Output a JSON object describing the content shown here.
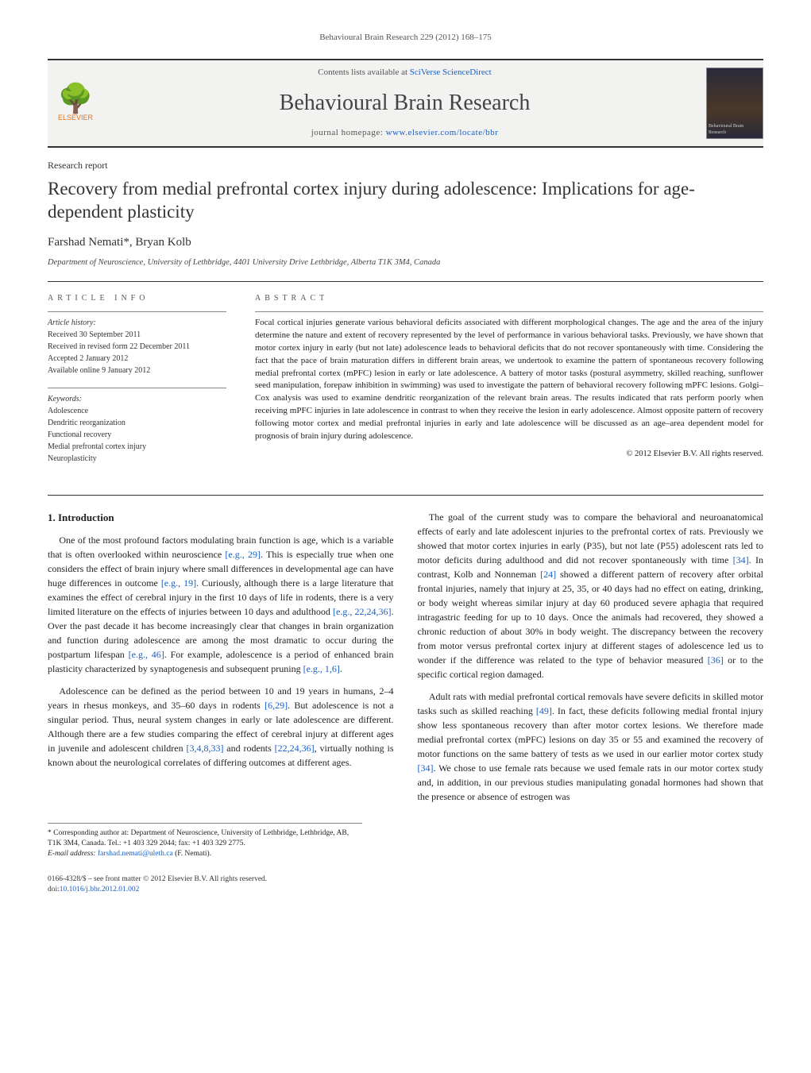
{
  "running_header": "Behavioural Brain Research 229 (2012) 168–175",
  "masthead": {
    "publisher": "ELSEVIER",
    "contents_prefix": "Contents lists available at ",
    "contents_link": "SciVerse ScienceDirect",
    "journal_title": "Behavioural Brain Research",
    "homepage_prefix": "journal homepage: ",
    "homepage_link": "www.elsevier.com/locate/bbr",
    "cover_caption": "Behavioural Brain Research"
  },
  "article": {
    "section_label": "Research report",
    "title": "Recovery from medial prefrontal cortex injury during adolescence: Implications for age-dependent plasticity",
    "authors": "Farshad Nemati*, Bryan Kolb",
    "affiliation": "Department of Neuroscience, University of Lethbridge, 4401 University Drive Lethbridge, Alberta T1K 3M4, Canada"
  },
  "info": {
    "heading": "ARTICLE INFO",
    "history_label": "Article history:",
    "history": {
      "received": "Received 30 September 2011",
      "revised": "Received in revised form 22 December 2011",
      "accepted": "Accepted 2 January 2012",
      "online": "Available online 9 January 2012"
    },
    "keywords_label": "Keywords:",
    "keywords": [
      "Adolescence",
      "Dendritic reorganization",
      "Functional recovery",
      "Medial prefrontal cortex injury",
      "Neuroplasticity"
    ]
  },
  "abstract": {
    "heading": "ABSTRACT",
    "text": "Focal cortical injuries generate various behavioral deficits associated with different morphological changes. The age and the area of the injury determine the nature and extent of recovery represented by the level of performance in various behavioral tasks. Previously, we have shown that motor cortex injury in early (but not late) adolescence leads to behavioral deficits that do not recover spontaneously with time. Considering the fact that the pace of brain maturation differs in different brain areas, we undertook to examine the pattern of spontaneous recovery following medial prefrontal cortex (mPFC) lesion in early or late adolescence. A battery of motor tasks (postural asymmetry, skilled reaching, sunflower seed manipulation, forepaw inhibition in swimming) was used to investigate the pattern of behavioral recovery following mPFC lesions. Golgi–Cox analysis was used to examine dendritic reorganization of the relevant brain areas. The results indicated that rats perform poorly when receiving mPFC injuries in late adolescence in contrast to when they receive the lesion in early adolescence. Almost opposite pattern of recovery following motor cortex and medial prefrontal injuries in early and late adolescence will be discussed as an age–area dependent model for prognosis of brain injury during adolescence.",
    "copyright": "© 2012 Elsevier B.V. All rights reserved."
  },
  "body": {
    "section_heading": "1. Introduction",
    "p1_a": "One of the most profound factors modulating brain function is age, which is a variable that is often overlooked within neuroscience ",
    "p1_c1": "[e.g., 29]",
    "p1_b": ". This is especially true when one considers the effect of brain injury where small differences in developmental age can have huge differences in outcome ",
    "p1_c2": "[e.g., 19]",
    "p1_c": ". Curiously, although there is a large literature that examines the effect of cerebral injury in the first 10 days of life in rodents, there is a very limited literature on the effects of injuries between 10 days and adulthood ",
    "p1_c3": "[e.g., 22,24,36]",
    "p1_d": ". Over the past decade it has become increasingly clear that changes in brain organization and function during adolescence are among the most dramatic to occur during the postpartum lifespan ",
    "p1_c4": "[e.g., 46]",
    "p1_e": ". For example, adolescence is a period of enhanced brain plasticity characterized by synaptogenesis and subsequent pruning ",
    "p1_c5": "[e.g., 1,6]",
    "p1_f": ".",
    "p2_a": "Adolescence can be defined as the period between 10 and 19 years in humans, 2–4 years in rhesus monkeys, and 35–60 days in rodents ",
    "p2_c1": "[6,29]",
    "p2_b": ". But adolescence is not a singular period. Thus, neural system changes in early or late adolescence are different. Although there are a few studies comparing the effect of cerebral injury at different ages in juvenile and adolescent children ",
    "p2_c2": "[3,4,8,33]",
    "p2_c": " and rodents ",
    "p2_c3": "[22,24,36]",
    "p2_d": ", virtually nothing is known about the neurological correlates of differing outcomes at different ages.",
    "p3_a": "The goal of the current study was to compare the behavioral and neuroanatomical effects of early and late adolescent injuries to the prefrontal cortex of rats. Previously we showed that motor cortex injuries in early (P35), but not late (P55) adolescent rats led to motor deficits during adulthood and did not recover spontaneously with time ",
    "p3_c1": "[34]",
    "p3_b": ". In contrast, Kolb and Nonneman ",
    "p3_c2": "[24]",
    "p3_c": " showed a different pattern of recovery after orbital frontal injuries, namely that injury at 25, 35, or 40 days had no effect on eating, drinking, or body weight whereas similar injury at day 60 produced severe aphagia that required intragastric feeding for up to 10 days. Once the animals had recovered, they showed a chronic reduction of about 30% in body weight. The discrepancy between the recovery from motor versus prefrontal cortex injury at different stages of adolescence led us to wonder if the difference was related to the type of behavior measured ",
    "p3_c3": "[36]",
    "p3_d": " or to the specific cortical region damaged.",
    "p4_a": "Adult rats with medial prefrontal cortical removals have severe deficits in skilled motor tasks such as skilled reaching ",
    "p4_c1": "[49]",
    "p4_b": ". In fact, these deficits following medial frontal injury show less spontaneous recovery than after motor cortex lesions. We therefore made medial prefrontal cortex (mPFC) lesions on day 35 or 55 and examined the recovery of motor functions on the same battery of tests as we used in our earlier motor cortex study ",
    "p4_c2": "[34]",
    "p4_c": ". We chose to use female rats because we used female rats in our motor cortex study and, in addition, in our previous studies manipulating gonadal hormones had shown that the presence or absence of estrogen was"
  },
  "footnote": {
    "corr": "* Corresponding author at: Department of Neuroscience, University of Lethbridge, Lethbridge, AB, T1K 3M4, Canada. Tel.: +1 403 329 2044; fax: +1 403 329 2775.",
    "email_label": "E-mail address: ",
    "email": "farshad.nemati@uleth.ca",
    "email_suffix": " (F. Nemati)."
  },
  "footer": {
    "issn": "0166-4328/$ – see front matter © 2012 Elsevier B.V. All rights reserved.",
    "doi_prefix": "doi:",
    "doi": "10.1016/j.bbr.2012.01.002"
  },
  "colors": {
    "link": "#1a5fc4",
    "publisher": "#e8711c",
    "text": "#222",
    "rule": "#333"
  }
}
